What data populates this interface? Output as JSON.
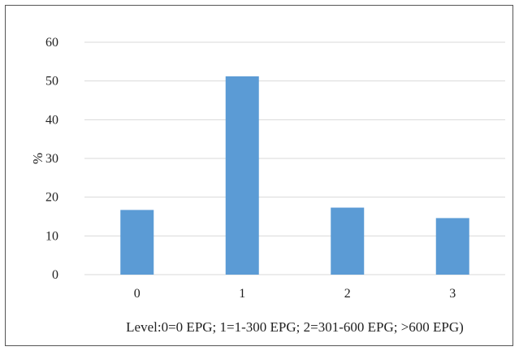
{
  "chart_data": {
    "type": "bar",
    "categories": [
      "0",
      "1",
      "2",
      "3"
    ],
    "values": [
      16.7,
      51.2,
      17.3,
      14.6
    ],
    "ylabel": "%",
    "xlabel": "Level:0=0 EPG; 1=1-300 EPG; 2=301-600 EPG; >600 EPG)",
    "ylim": [
      0,
      60
    ],
    "yticks": [
      0,
      10,
      20,
      30,
      40,
      50,
      60
    ],
    "grid": true,
    "legend": "none",
    "colors": {
      "bar": "#5B9BD5",
      "grid": "#D9D9D9",
      "text": "#222222"
    }
  }
}
